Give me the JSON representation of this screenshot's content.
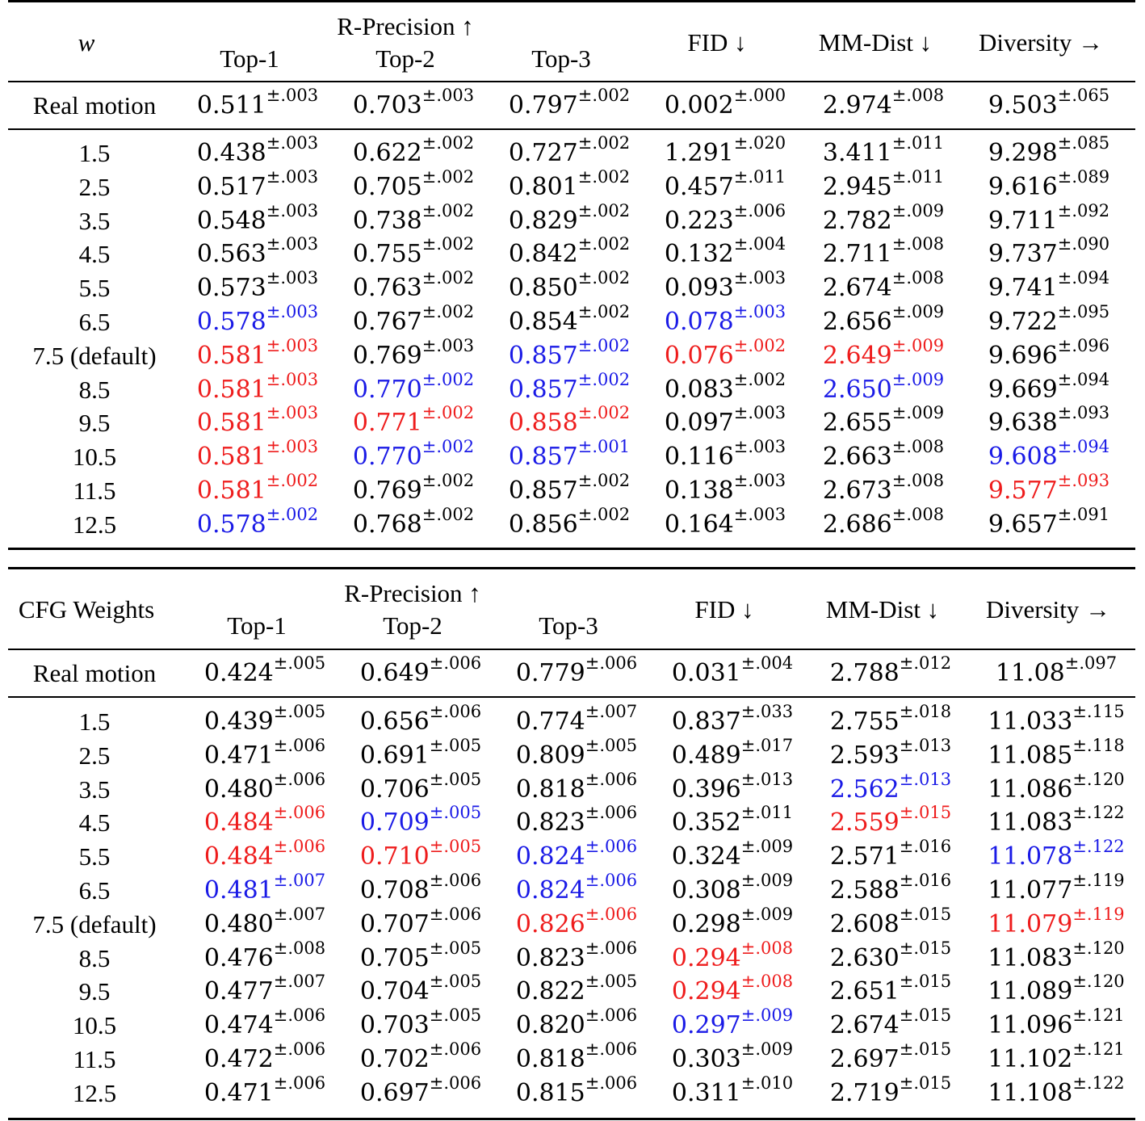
{
  "tables": [
    {
      "label_header": "w",
      "group_header": "R-Precision ↑",
      "sub_headers": [
        "Top-1",
        "Top-2",
        "Top-3"
      ],
      "metric_headers": [
        "FID ↓",
        "MM-Dist ↓",
        "Diversity →"
      ],
      "real_motion": {
        "label": "Real motion",
        "values": [
          {
            "v": "0.511",
            "e": "±.003"
          },
          {
            "v": "0.703",
            "e": "±.003"
          },
          {
            "v": "0.797",
            "e": "±.002"
          },
          {
            "v": "0.002",
            "e": "±.000"
          },
          {
            "v": "2.974",
            "e": "±.008"
          },
          {
            "v": "9.503",
            "e": "±.065"
          }
        ]
      },
      "rows": [
        {
          "label": "1.5",
          "values": [
            {
              "v": "0.438",
              "e": "±.003"
            },
            {
              "v": "0.622",
              "e": "±.002"
            },
            {
              "v": "0.727",
              "e": "±.002"
            },
            {
              "v": "1.291",
              "e": "±.020"
            },
            {
              "v": "3.411",
              "e": "±.011"
            },
            {
              "v": "9.298",
              "e": "±.085"
            }
          ]
        },
        {
          "label": "2.5",
          "values": [
            {
              "v": "0.517",
              "e": "±.003"
            },
            {
              "v": "0.705",
              "e": "±.002"
            },
            {
              "v": "0.801",
              "e": "±.002"
            },
            {
              "v": "0.457",
              "e": "±.011"
            },
            {
              "v": "2.945",
              "e": "±.011"
            },
            {
              "v": "9.616",
              "e": "±.089"
            }
          ]
        },
        {
          "label": "3.5",
          "values": [
            {
              "v": "0.548",
              "e": "±.003"
            },
            {
              "v": "0.738",
              "e": "±.002"
            },
            {
              "v": "0.829",
              "e": "±.002"
            },
            {
              "v": "0.223",
              "e": "±.006"
            },
            {
              "v": "2.782",
              "e": "±.009"
            },
            {
              "v": "9.711",
              "e": "±.092"
            }
          ]
        },
        {
          "label": "4.5",
          "values": [
            {
              "v": "0.563",
              "e": "±.003"
            },
            {
              "v": "0.755",
              "e": "±.002"
            },
            {
              "v": "0.842",
              "e": "±.002"
            },
            {
              "v": "0.132",
              "e": "±.004"
            },
            {
              "v": "2.711",
              "e": "±.008"
            },
            {
              "v": "9.737",
              "e": "±.090"
            }
          ]
        },
        {
          "label": "5.5",
          "values": [
            {
              "v": "0.573",
              "e": "±.003"
            },
            {
              "v": "0.763",
              "e": "±.002"
            },
            {
              "v": "0.850",
              "e": "±.002"
            },
            {
              "v": "0.093",
              "e": "±.003"
            },
            {
              "v": "2.674",
              "e": "±.008"
            },
            {
              "v": "9.741",
              "e": "±.094"
            }
          ]
        },
        {
          "label": "6.5",
          "values": [
            {
              "v": "0.578",
              "e": "±.003",
              "c": "blue"
            },
            {
              "v": "0.767",
              "e": "±.002"
            },
            {
              "v": "0.854",
              "e": "±.002"
            },
            {
              "v": "0.078",
              "e": "±.003",
              "c": "blue"
            },
            {
              "v": "2.656",
              "e": "±.009"
            },
            {
              "v": "9.722",
              "e": "±.095"
            }
          ]
        },
        {
          "label": "7.5 (default)",
          "values": [
            {
              "v": "0.581",
              "e": "±.003",
              "c": "red"
            },
            {
              "v": "0.769",
              "e": "±.003"
            },
            {
              "v": "0.857",
              "e": "±.002",
              "c": "blue"
            },
            {
              "v": "0.076",
              "e": "±.002",
              "c": "red"
            },
            {
              "v": "2.649",
              "e": "±.009",
              "c": "red"
            },
            {
              "v": "9.696",
              "e": "±.096"
            }
          ]
        },
        {
          "label": "8.5",
          "values": [
            {
              "v": "0.581",
              "e": "±.003",
              "c": "red"
            },
            {
              "v": "0.770",
              "e": "±.002",
              "c": "blue"
            },
            {
              "v": "0.857",
              "e": "±.002",
              "c": "blue"
            },
            {
              "v": "0.083",
              "e": "±.002"
            },
            {
              "v": "2.650",
              "e": "±.009",
              "c": "blue"
            },
            {
              "v": "9.669",
              "e": "±.094"
            }
          ]
        },
        {
          "label": "9.5",
          "values": [
            {
              "v": "0.581",
              "e": "±.003",
              "c": "red"
            },
            {
              "v": "0.771",
              "e": "±.002",
              "c": "red"
            },
            {
              "v": "0.858",
              "e": "±.002",
              "c": "red"
            },
            {
              "v": "0.097",
              "e": "±.003"
            },
            {
              "v": "2.655",
              "e": "±.009"
            },
            {
              "v": "9.638",
              "e": "±.093"
            }
          ]
        },
        {
          "label": "10.5",
          "values": [
            {
              "v": "0.581",
              "e": "±.003",
              "c": "red"
            },
            {
              "v": "0.770",
              "e": "±.002",
              "c": "blue"
            },
            {
              "v": "0.857",
              "e": "±.001",
              "c": "blue"
            },
            {
              "v": "0.116",
              "e": "±.003"
            },
            {
              "v": "2.663",
              "e": "±.008"
            },
            {
              "v": "9.608",
              "e": "±.094",
              "c": "blue"
            }
          ]
        },
        {
          "label": "11.5",
          "values": [
            {
              "v": "0.581",
              "e": "±.002",
              "c": "red"
            },
            {
              "v": "0.769",
              "e": "±.002"
            },
            {
              "v": "0.857",
              "e": "±.002"
            },
            {
              "v": "0.138",
              "e": "±.003"
            },
            {
              "v": "2.673",
              "e": "±.008"
            },
            {
              "v": "9.577",
              "e": "±.093",
              "c": "red"
            }
          ]
        },
        {
          "label": "12.5",
          "values": [
            {
              "v": "0.578",
              "e": "±.002",
              "c": "blue"
            },
            {
              "v": "0.768",
              "e": "±.002"
            },
            {
              "v": "0.856",
              "e": "±.002"
            },
            {
              "v": "0.164",
              "e": "±.003"
            },
            {
              "v": "2.686",
              "e": "±.008"
            },
            {
              "v": "9.657",
              "e": "±.091"
            }
          ]
        }
      ]
    },
    {
      "label_header": "CFG Weights",
      "group_header": "R-Precision ↑",
      "sub_headers": [
        "Top-1",
        "Top-2",
        "Top-3"
      ],
      "metric_headers": [
        "FID ↓",
        "MM-Dist ↓",
        "Diversity →"
      ],
      "real_motion": {
        "label": "Real motion",
        "values": [
          {
            "v": "0.424",
            "e": "±.005"
          },
          {
            "v": "0.649",
            "e": "±.006"
          },
          {
            "v": "0.779",
            "e": "±.006"
          },
          {
            "v": "0.031",
            "e": "±.004"
          },
          {
            "v": "2.788",
            "e": "±.012"
          },
          {
            "v": "11.08",
            "e": "±.097"
          }
        ]
      },
      "rows": [
        {
          "label": "1.5",
          "values": [
            {
              "v": "0.439",
              "e": "±.005"
            },
            {
              "v": "0.656",
              "e": "±.006"
            },
            {
              "v": "0.774",
              "e": "±.007"
            },
            {
              "v": "0.837",
              "e": "±.033"
            },
            {
              "v": "2.755",
              "e": "±.018"
            },
            {
              "v": "11.033",
              "e": "±.115"
            }
          ]
        },
        {
          "label": "2.5",
          "values": [
            {
              "v": "0.471",
              "e": "±.006"
            },
            {
              "v": "0.691",
              "e": "±.005"
            },
            {
              "v": "0.809",
              "e": "±.005"
            },
            {
              "v": "0.489",
              "e": "±.017"
            },
            {
              "v": "2.593",
              "e": "±.013"
            },
            {
              "v": "11.085",
              "e": "±.118"
            }
          ]
        },
        {
          "label": "3.5",
          "values": [
            {
              "v": "0.480",
              "e": "±.006"
            },
            {
              "v": "0.706",
              "e": "±.005"
            },
            {
              "v": "0.818",
              "e": "±.006"
            },
            {
              "v": "0.396",
              "e": "±.013"
            },
            {
              "v": "2.562",
              "e": "±.013",
              "c": "blue"
            },
            {
              "v": "11.086",
              "e": "±.120"
            }
          ]
        },
        {
          "label": "4.5",
          "values": [
            {
              "v": "0.484",
              "e": "±.006",
              "c": "red"
            },
            {
              "v": "0.709",
              "e": "±.005",
              "c": "blue"
            },
            {
              "v": "0.823",
              "e": "±.006"
            },
            {
              "v": "0.352",
              "e": "±.011"
            },
            {
              "v": "2.559",
              "e": "±.015",
              "c": "red"
            },
            {
              "v": "11.083",
              "e": "±.122"
            }
          ]
        },
        {
          "label": "5.5",
          "values": [
            {
              "v": "0.484",
              "e": "±.006",
              "c": "red"
            },
            {
              "v": "0.710",
              "e": "±.005",
              "c": "red"
            },
            {
              "v": "0.824",
              "e": "±.006",
              "c": "blue"
            },
            {
              "v": "0.324",
              "e": "±.009"
            },
            {
              "v": "2.571",
              "e": "±.016"
            },
            {
              "v": "11.078",
              "e": "±.122",
              "c": "blue"
            }
          ]
        },
        {
          "label": "6.5",
          "values": [
            {
              "v": "0.481",
              "e": "±.007",
              "c": "blue"
            },
            {
              "v": "0.708",
              "e": "±.006"
            },
            {
              "v": "0.824",
              "e": "±.006",
              "c": "blue"
            },
            {
              "v": "0.308",
              "e": "±.009"
            },
            {
              "v": "2.588",
              "e": "±.016"
            },
            {
              "v": "11.077",
              "e": "±.119"
            }
          ]
        },
        {
          "label": "7.5 (default)",
          "values": [
            {
              "v": "0.480",
              "e": "±.007"
            },
            {
              "v": "0.707",
              "e": "±.006"
            },
            {
              "v": "0.826",
              "e": "±.006",
              "c": "red"
            },
            {
              "v": "0.298",
              "e": "±.009"
            },
            {
              "v": "2.608",
              "e": "±.015"
            },
            {
              "v": "11.079",
              "e": "±.119",
              "c": "red"
            }
          ]
        },
        {
          "label": "8.5",
          "values": [
            {
              "v": "0.476",
              "e": "±.008"
            },
            {
              "v": "0.705",
              "e": "±.005"
            },
            {
              "v": "0.823",
              "e": "±.006"
            },
            {
              "v": "0.294",
              "e": "±.008",
              "c": "red"
            },
            {
              "v": "2.630",
              "e": "±.015"
            },
            {
              "v": "11.083",
              "e": "±.120"
            }
          ]
        },
        {
          "label": "9.5",
          "values": [
            {
              "v": "0.477",
              "e": "±.007"
            },
            {
              "v": "0.704",
              "e": "±.005"
            },
            {
              "v": "0.822",
              "e": "±.005"
            },
            {
              "v": "0.294",
              "e": "±.008",
              "c": "red"
            },
            {
              "v": "2.651",
              "e": "±.015"
            },
            {
              "v": "11.089",
              "e": "±.120"
            }
          ]
        },
        {
          "label": "10.5",
          "values": [
            {
              "v": "0.474",
              "e": "±.006"
            },
            {
              "v": "0.703",
              "e": "±.005"
            },
            {
              "v": "0.820",
              "e": "±.006"
            },
            {
              "v": "0.297",
              "e": "±.009",
              "c": "blue"
            },
            {
              "v": "2.674",
              "e": "±.015"
            },
            {
              "v": "11.096",
              "e": "±.121"
            }
          ]
        },
        {
          "label": "11.5",
          "values": [
            {
              "v": "0.472",
              "e": "±.006"
            },
            {
              "v": "0.702",
              "e": "±.006"
            },
            {
              "v": "0.818",
              "e": "±.006"
            },
            {
              "v": "0.303",
              "e": "±.009"
            },
            {
              "v": "2.697",
              "e": "±.015"
            },
            {
              "v": "11.102",
              "e": "±.121"
            }
          ]
        },
        {
          "label": "12.5",
          "values": [
            {
              "v": "0.471",
              "e": "±.006"
            },
            {
              "v": "0.697",
              "e": "±.006"
            },
            {
              "v": "0.815",
              "e": "±.006"
            },
            {
              "v": "0.311",
              "e": "±.010"
            },
            {
              "v": "2.719",
              "e": "±.015"
            },
            {
              "v": "11.108",
              "e": "±.122"
            }
          ]
        }
      ]
    }
  ]
}
